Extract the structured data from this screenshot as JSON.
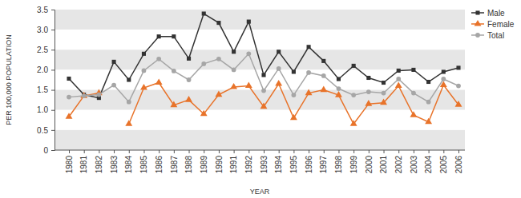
{
  "chart_data": {
    "type": "line",
    "x_label": "YEAR",
    "y_label": "PER 100,000 POPULATION",
    "categories": [
      "1980",
      "1981",
      "1982",
      "1983",
      "1984",
      "1985",
      "1986",
      "1987",
      "1988",
      "1989",
      "1990",
      "1991",
      "1992",
      "1993",
      "1994",
      "1995",
      "1996",
      "1997",
      "1998",
      "1999",
      "2000",
      "2001",
      "2002",
      "2003",
      "2004",
      "2005",
      "2006"
    ],
    "series": [
      {
        "name": "Male",
        "color": "#333333",
        "marker": "square",
        "values": [
          1.78,
          1.38,
          1.3,
          2.2,
          1.75,
          2.4,
          2.83,
          2.83,
          2.28,
          3.4,
          3.17,
          2.45,
          3.2,
          1.87,
          2.45,
          1.95,
          2.57,
          2.22,
          1.77,
          2.1,
          1.8,
          1.68,
          1.98,
          2.0,
          1.7,
          1.95,
          2.05
        ]
      },
      {
        "name": "Female",
        "color": "#e8732a",
        "marker": "triangle",
        "values": [
          0.83,
          1.35,
          1.42,
          null,
          0.65,
          1.55,
          1.68,
          1.12,
          1.25,
          0.9,
          1.38,
          1.57,
          1.6,
          1.08,
          1.65,
          0.8,
          1.42,
          1.5,
          1.37,
          0.65,
          1.15,
          1.18,
          1.6,
          0.87,
          0.7,
          1.62,
          1.13
        ]
      },
      {
        "name": "Total",
        "color": "#a6a6a6",
        "marker": "circle",
        "values": [
          1.32,
          1.35,
          1.38,
          1.62,
          1.2,
          1.98,
          2.27,
          1.97,
          1.75,
          2.15,
          2.27,
          2.0,
          2.4,
          1.48,
          2.03,
          1.37,
          1.93,
          1.85,
          1.53,
          1.37,
          1.45,
          1.42,
          1.77,
          1.42,
          1.2,
          1.77,
          1.6
        ]
      }
    ],
    "ylim": [
      0,
      3.5
    ],
    "yticks": [
      0,
      0.5,
      {
        "value": 1,
        "label": "1.0"
      },
      1.5,
      {
        "value": 2,
        "label": "2.0"
      },
      2.5,
      {
        "value": 3,
        "label": "3.0"
      },
      3.5
    ],
    "grid": true,
    "legend": "upper right"
  }
}
